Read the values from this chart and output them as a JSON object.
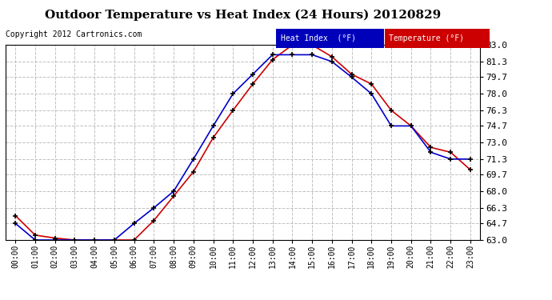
{
  "title": "Outdoor Temperature vs Heat Index (24 Hours) 20120829",
  "copyright": "Copyright 2012 Cartronics.com",
  "background_color": "#ffffff",
  "plot_bg_color": "#ffffff",
  "grid_color": "#c0c0c0",
  "hours": [
    0,
    1,
    2,
    3,
    4,
    5,
    6,
    7,
    8,
    9,
    10,
    11,
    12,
    13,
    14,
    15,
    16,
    17,
    18,
    19,
    20,
    21,
    22,
    23
  ],
  "heat_index": [
    64.7,
    63.0,
    63.0,
    63.0,
    63.0,
    63.0,
    64.7,
    66.3,
    68.0,
    71.3,
    74.7,
    78.0,
    80.0,
    82.0,
    82.0,
    82.0,
    81.3,
    79.7,
    78.0,
    74.7,
    74.7,
    72.0,
    71.3,
    71.3
  ],
  "temperature": [
    65.5,
    63.5,
    63.2,
    63.0,
    63.0,
    63.0,
    63.0,
    65.0,
    67.5,
    70.0,
    73.5,
    76.3,
    79.0,
    81.5,
    83.0,
    83.0,
    81.8,
    80.0,
    79.0,
    76.3,
    74.7,
    72.5,
    72.0,
    70.2
  ],
  "ylim_min": 63.0,
  "ylim_max": 83.0,
  "yticks": [
    63.0,
    64.7,
    66.3,
    68.0,
    69.7,
    71.3,
    73.0,
    74.7,
    76.3,
    78.0,
    79.7,
    81.3,
    83.0
  ],
  "heat_index_color": "#0000cc",
  "temperature_color": "#cc0000",
  "legend_hi_bg": "#0000bb",
  "legend_hi_text": "#ffffff",
  "legend_temp_bg": "#cc0000",
  "legend_temp_text": "#ffffff",
  "marker": "+",
  "marker_color": "#000000",
  "title_fontsize": 11,
  "copyright_fontsize": 7,
  "tick_fontsize": 7,
  "ytick_fontsize": 8
}
